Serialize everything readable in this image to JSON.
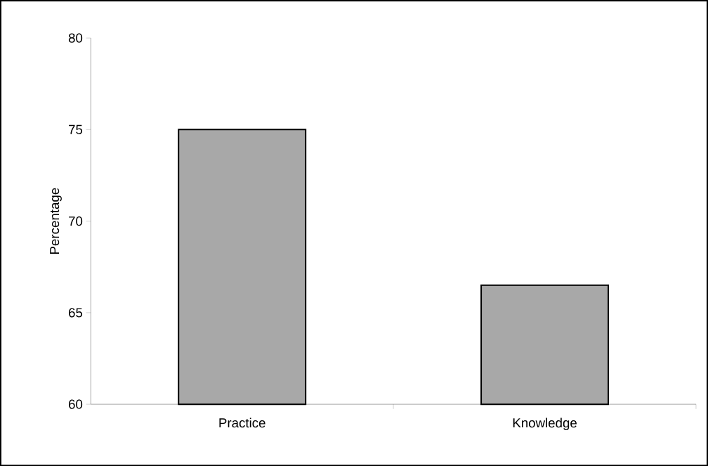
{
  "chart_data": {
    "type": "bar",
    "ylabel": "Percentage",
    "categories": [
      "Practice",
      "Knowledge"
    ],
    "values": [
      75,
      66.5
    ],
    "color": "#a8a8a8",
    "ylim": [
      60,
      80
    ],
    "yticks": [
      60,
      65,
      70,
      75,
      80
    ]
  }
}
